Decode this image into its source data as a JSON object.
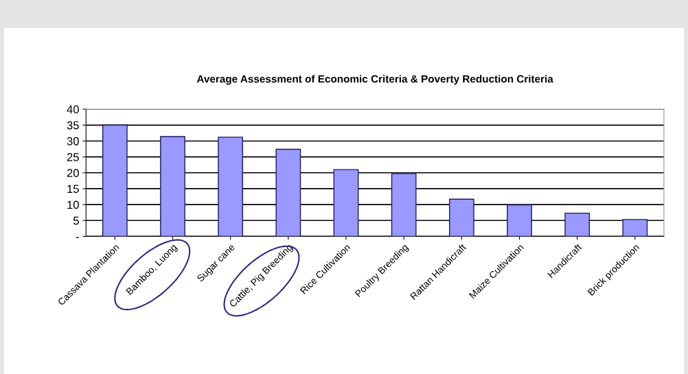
{
  "chart_data": {
    "type": "bar",
    "title": "Average Assessment of Economic Criteria & Poverty Reduction Criteria",
    "categories": [
      "Cassava Plantation",
      "Bamboo, Luong",
      "Sugar cane",
      "Cattle, Pig Breeding",
      "Rice Cultivation",
      "Poultry Breeding",
      "Rattan Handicraft",
      "Maize Cultivation",
      "Handicraft",
      "Brick production"
    ],
    "values": [
      35,
      31.4,
      31.2,
      27.4,
      21.0,
      19.7,
      11.7,
      9.9,
      7.3,
      5.3
    ],
    "color": "#9999ff",
    "ylim": [
      0,
      40
    ],
    "yticks": [
      {
        "value": 0,
        "label": "-"
      },
      5,
      10,
      15,
      20,
      25,
      30,
      35,
      40
    ],
    "grid": "y"
  }
}
